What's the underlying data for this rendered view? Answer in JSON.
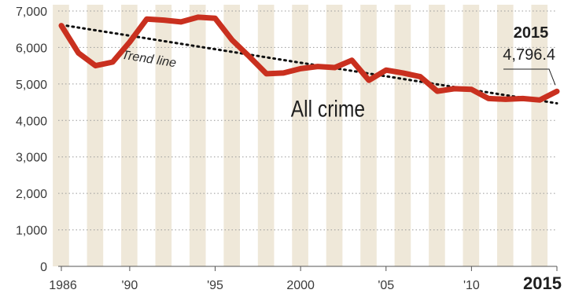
{
  "chart_data": {
    "type": "line",
    "title": "",
    "xlabel": "",
    "ylabel": "",
    "x": [
      1986,
      1987,
      1988,
      1989,
      1990,
      1991,
      1992,
      1993,
      1994,
      1995,
      1996,
      1997,
      1998,
      1999,
      2000,
      2001,
      2002,
      2003,
      2004,
      2005,
      2006,
      2007,
      2008,
      2009,
      2010,
      2011,
      2012,
      2013,
      2014,
      2015
    ],
    "ylim": [
      0,
      7000
    ],
    "yticks": [
      0,
      1000,
      2000,
      3000,
      4000,
      5000,
      6000,
      7000
    ],
    "ytick_labels": [
      "0",
      "1,000",
      "2,000",
      "3,000",
      "4,000",
      "5,000",
      "6,000",
      "7,000"
    ],
    "xtick_labels": [
      {
        "x": 1986,
        "label": "1986"
      },
      {
        "x": 1990,
        "label": "'90"
      },
      {
        "x": 1995,
        "label": "'95"
      },
      {
        "x": 2000,
        "label": "2000"
      },
      {
        "x": 2005,
        "label": "'05"
      },
      {
        "x": 2010,
        "label": "'10"
      },
      {
        "x": 2015,
        "label": "2015"
      }
    ],
    "grid": "horizontal dotted",
    "alternating_year_bands": true,
    "series": [
      {
        "name": "All crime",
        "color": "#c9301f",
        "values": [
          6600,
          5850,
          5500,
          5600,
          6150,
          6780,
          6750,
          6700,
          6830,
          6800,
          6200,
          5750,
          5280,
          5300,
          5420,
          5480,
          5450,
          5650,
          5100,
          5380,
          5300,
          5200,
          4800,
          4870,
          4850,
          4600,
          4580,
          4600,
          4560,
          4796.4
        ]
      },
      {
        "name": "Trend line",
        "style": "dotted",
        "color": "#111111",
        "values": [
          6620,
          4470
        ],
        "x": [
          1986,
          2015
        ]
      }
    ],
    "annotations": [
      {
        "label": "2015",
        "value": "4,796.4",
        "x": 2015
      }
    ]
  },
  "colors": {
    "series": "#c9301f",
    "band": "#efe8d9",
    "grid": "#9a9a9a",
    "trend": "#111111"
  }
}
